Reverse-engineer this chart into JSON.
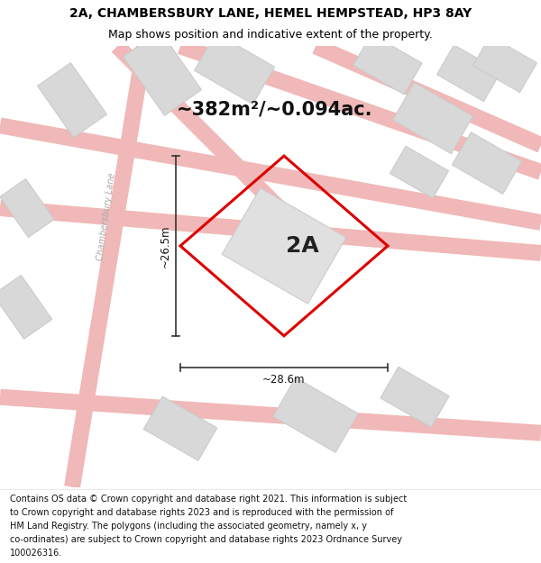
{
  "title_line1": "2A, CHAMBERSBURY LANE, HEMEL HEMPSTEAD, HP3 8AY",
  "title_line2": "Map shows position and indicative extent of the property.",
  "area_text": "~382m²/~0.094ac.",
  "label_2a": "2A",
  "dim_width": "~28.6m",
  "dim_height": "~26.5m",
  "footer_lines": [
    "Contains OS data © Crown copyright and database right 2021. This information is subject",
    "to Crown copyright and database rights 2023 and is reproduced with the permission of",
    "HM Land Registry. The polygons (including the associated geometry, namely x, y",
    "co-ordinates) are subject to Crown copyright and database rights 2023 Ordnance Survey",
    "100026316."
  ],
  "bg_color": "#f7f7f7",
  "property_fill": "#eeeeee",
  "property_edge": "#dd0000",
  "inner_rect_fill": "#e0e0e0",
  "inner_rect_edge": "#cccccc",
  "road_color": "#f0b8b8",
  "building_fill": "#d8d8d8",
  "building_edge": "#cccccc",
  "lane_text_color": "#aaaaaa",
  "dim_line_color": "#333333",
  "title_fontsize": 10,
  "subtitle_fontsize": 9,
  "area_fontsize": 15,
  "label_fontsize": 18,
  "footer_fontsize": 7.0,
  "road_linewidth": 8
}
